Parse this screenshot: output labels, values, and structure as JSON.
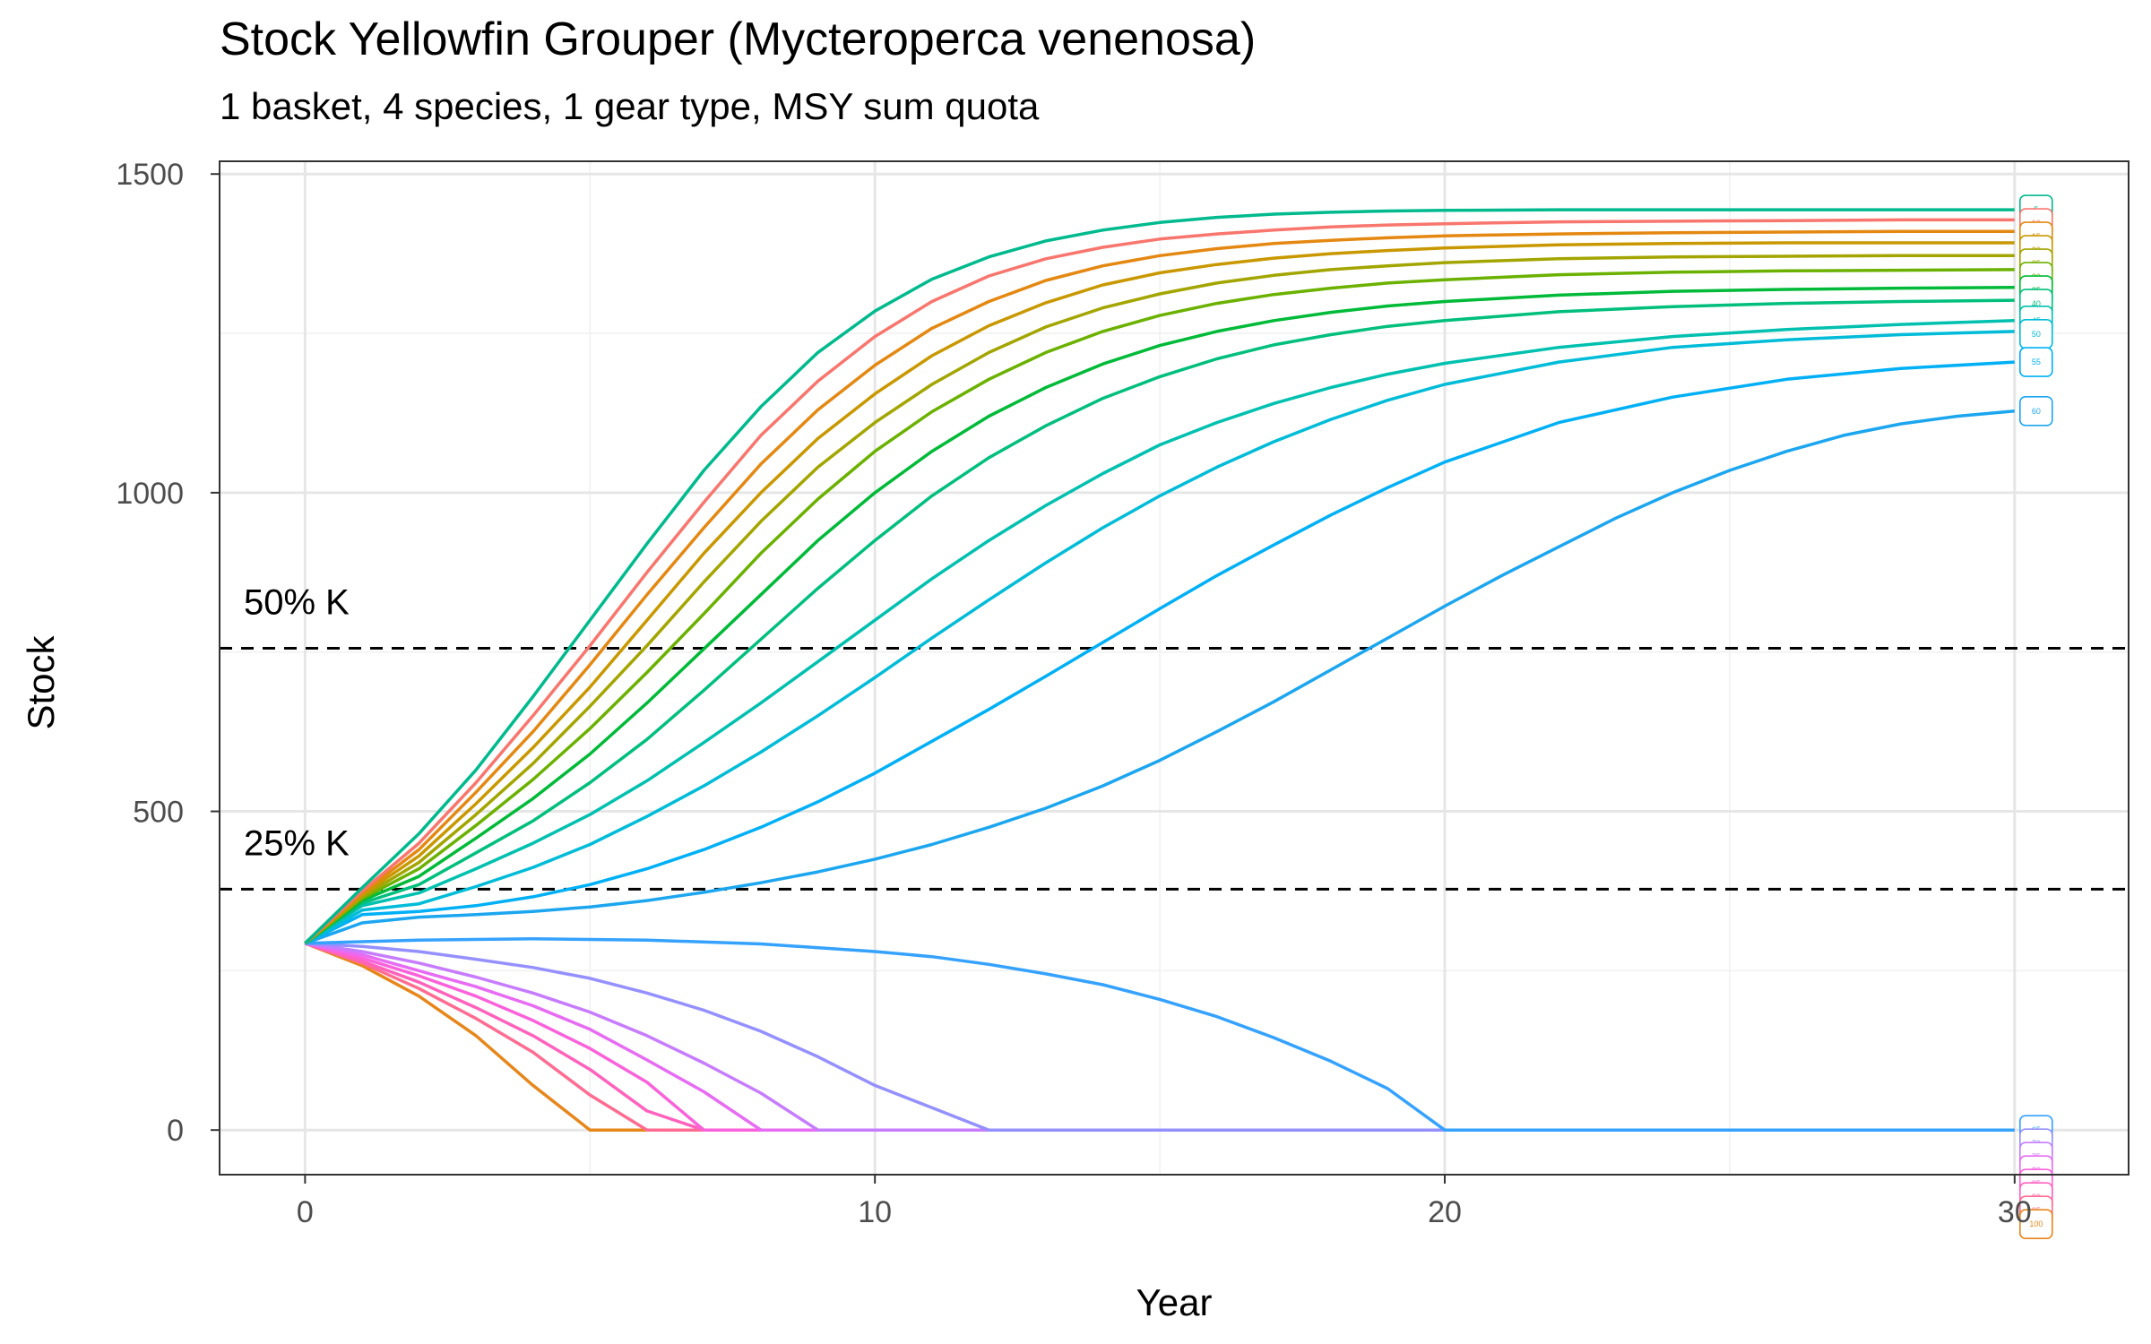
{
  "chart_data": {
    "type": "line",
    "title": "Stock Yellowfin Grouper (Mycteroperca venenosa)",
    "subtitle": "1 basket, 4 species, 1 gear type, MSY sum quota",
    "xlabel": "Year",
    "ylabel": "Stock",
    "xlim": [
      -1.5,
      32
    ],
    "ylim": [
      -70,
      1520
    ],
    "x_ticks": [
      0,
      10,
      20,
      30
    ],
    "y_ticks": [
      0,
      500,
      1000,
      1500
    ],
    "grid": true,
    "legend": "none",
    "reference_lines": [
      {
        "label": "50% K",
        "y": 756
      },
      {
        "label": "25% K",
        "y": 378
      }
    ],
    "series": [
      {
        "label": "5",
        "color": "#00BA8E",
        "x": [
          0,
          1,
          2,
          3,
          4,
          5,
          6,
          7,
          8,
          9,
          10,
          11,
          12,
          13,
          14,
          15,
          16,
          17,
          18,
          19,
          20,
          22,
          24,
          26,
          28,
          30
        ],
        "y": [
          293,
          380,
          465,
          565,
          680,
          800,
          920,
          1035,
          1135,
          1220,
          1285,
          1335,
          1370,
          1395,
          1412,
          1424,
          1432,
          1437,
          1440,
          1442,
          1443,
          1444,
          1444,
          1444,
          1444,
          1444
        ]
      },
      {
        "label": "10",
        "color": "#F8766D",
        "x": [
          0,
          1,
          2,
          3,
          4,
          5,
          6,
          7,
          8,
          9,
          10,
          11,
          12,
          13,
          14,
          15,
          16,
          17,
          18,
          19,
          20,
          22,
          24,
          26,
          28,
          30
        ],
        "y": [
          293,
          375,
          450,
          545,
          650,
          760,
          875,
          985,
          1090,
          1175,
          1245,
          1300,
          1340,
          1367,
          1385,
          1398,
          1406,
          1412,
          1417,
          1420,
          1422,
          1425,
          1426,
          1427,
          1428,
          1428
        ]
      },
      {
        "label": "15",
        "color": "#E48812",
        "x": [
          0,
          1,
          2,
          3,
          4,
          5,
          6,
          7,
          8,
          9,
          10,
          11,
          12,
          13,
          14,
          15,
          16,
          17,
          18,
          19,
          20,
          22,
          24,
          26,
          28,
          30
        ],
        "y": [
          293,
          372,
          440,
          530,
          625,
          730,
          840,
          945,
          1045,
          1130,
          1200,
          1258,
          1300,
          1333,
          1356,
          1372,
          1383,
          1391,
          1396,
          1400,
          1403,
          1406,
          1408,
          1409,
          1410,
          1410
        ]
      },
      {
        "label": "20",
        "color": "#C99800",
        "x": [
          0,
          1,
          2,
          3,
          4,
          5,
          6,
          7,
          8,
          9,
          10,
          11,
          12,
          13,
          14,
          15,
          16,
          17,
          18,
          19,
          20,
          22,
          24,
          26,
          28,
          30
        ],
        "y": [
          293,
          369,
          430,
          512,
          600,
          695,
          800,
          905,
          1000,
          1085,
          1155,
          1215,
          1262,
          1298,
          1326,
          1345,
          1358,
          1368,
          1375,
          1380,
          1384,
          1389,
          1391,
          1392,
          1392,
          1392
        ]
      },
      {
        "label": "25",
        "color": "#A3A500",
        "x": [
          0,
          1,
          2,
          3,
          4,
          5,
          6,
          7,
          8,
          9,
          10,
          11,
          12,
          13,
          14,
          15,
          16,
          17,
          18,
          19,
          20,
          22,
          24,
          26,
          28,
          30
        ],
        "y": [
          293,
          366,
          420,
          495,
          575,
          665,
          760,
          860,
          955,
          1040,
          1110,
          1170,
          1220,
          1260,
          1290,
          1312,
          1329,
          1341,
          1350,
          1356,
          1361,
          1367,
          1370,
          1371,
          1372,
          1372
        ]
      },
      {
        "label": "30",
        "color": "#6BB100",
        "x": [
          0,
          1,
          2,
          3,
          4,
          5,
          6,
          7,
          8,
          9,
          10,
          11,
          12,
          13,
          14,
          15,
          16,
          17,
          18,
          19,
          20,
          22,
          24,
          26,
          28,
          30
        ],
        "y": [
          293,
          363,
          410,
          478,
          550,
          630,
          718,
          810,
          905,
          990,
          1065,
          1127,
          1178,
          1220,
          1253,
          1278,
          1297,
          1311,
          1321,
          1329,
          1334,
          1342,
          1346,
          1348,
          1349,
          1350
        ]
      },
      {
        "label": "35",
        "color": "#00BA38",
        "x": [
          0,
          1,
          2,
          3,
          4,
          5,
          6,
          7,
          8,
          9,
          10,
          11,
          12,
          13,
          14,
          15,
          16,
          17,
          18,
          19,
          20,
          22,
          24,
          26,
          28,
          30
        ],
        "y": [
          293,
          360,
          398,
          458,
          520,
          590,
          670,
          755,
          840,
          925,
          1000,
          1065,
          1120,
          1165,
          1202,
          1231,
          1253,
          1270,
          1283,
          1293,
          1300,
          1310,
          1316,
          1319,
          1321,
          1322
        ]
      },
      {
        "label": "40",
        "color": "#00BF7D",
        "x": [
          0,
          1,
          2,
          3,
          4,
          5,
          6,
          7,
          8,
          9,
          10,
          11,
          12,
          13,
          14,
          15,
          16,
          17,
          18,
          19,
          20,
          22,
          24,
          26,
          28,
          30
        ],
        "y": [
          293,
          356,
          385,
          435,
          485,
          545,
          613,
          690,
          770,
          850,
          925,
          995,
          1055,
          1105,
          1148,
          1182,
          1210,
          1232,
          1248,
          1261,
          1270,
          1284,
          1292,
          1297,
          1300,
          1302
        ]
      },
      {
        "label": "45",
        "color": "#00C0AF",
        "x": [
          0,
          1,
          2,
          3,
          4,
          5,
          6,
          7,
          8,
          9,
          10,
          11,
          12,
          13,
          14,
          15,
          16,
          17,
          18,
          19,
          20,
          22,
          24,
          26,
          28,
          30
        ],
        "y": [
          293,
          352,
          372,
          410,
          450,
          495,
          548,
          608,
          670,
          735,
          800,
          865,
          925,
          980,
          1030,
          1075,
          1110,
          1140,
          1165,
          1186,
          1203,
          1228,
          1245,
          1256,
          1264,
          1270
        ]
      },
      {
        "label": "50",
        "color": "#00BCD8",
        "x": [
          0,
          1,
          2,
          3,
          4,
          5,
          6,
          7,
          8,
          9,
          10,
          11,
          12,
          13,
          14,
          15,
          16,
          17,
          18,
          19,
          20,
          22,
          24,
          26,
          28,
          30
        ],
        "y": [
          293,
          345,
          355,
          382,
          412,
          448,
          492,
          540,
          593,
          650,
          710,
          772,
          832,
          890,
          945,
          995,
          1040,
          1080,
          1115,
          1145,
          1170,
          1205,
          1228,
          1240,
          1248,
          1253
        ]
      },
      {
        "label": "55",
        "color": "#00B0F6",
        "x": [
          0,
          1,
          2,
          3,
          4,
          5,
          6,
          7,
          8,
          9,
          10,
          11,
          12,
          13,
          14,
          15,
          16,
          17,
          18,
          19,
          20,
          22,
          24,
          26,
          28,
          30
        ],
        "y": [
          293,
          338,
          343,
          352,
          366,
          385,
          410,
          440,
          475,
          515,
          560,
          610,
          660,
          712,
          765,
          818,
          870,
          918,
          965,
          1008,
          1048,
          1110,
          1150,
          1178,
          1195,
          1205
        ]
      },
      {
        "label": "60",
        "color": "#1CA6F0",
        "x": [
          0,
          1,
          2,
          3,
          4,
          5,
          6,
          7,
          8,
          9,
          10,
          11,
          12,
          13,
          14,
          15,
          16,
          17,
          18,
          19,
          20,
          21,
          22,
          23,
          24,
          25,
          26,
          27,
          28,
          29,
          30
        ],
        "y": [
          293,
          325,
          334,
          338,
          343,
          350,
          360,
          373,
          388,
          405,
          425,
          448,
          475,
          505,
          540,
          580,
          625,
          672,
          722,
          772,
          822,
          870,
          915,
          960,
          1000,
          1035,
          1065,
          1090,
          1108,
          1120,
          1128
        ]
      },
      {
        "label": "65",
        "color": "#35A2FF",
        "x": [
          0,
          2,
          4,
          6,
          8,
          10,
          11,
          12,
          13,
          14,
          15,
          16,
          17,
          18,
          19,
          20,
          22,
          24,
          26,
          28,
          30
        ],
        "y": [
          293,
          298,
          300,
          298,
          292,
          280,
          272,
          260,
          245,
          228,
          205,
          178,
          145,
          108,
          65,
          0,
          0,
          0,
          0,
          0,
          0
        ]
      },
      {
        "label": "70",
        "color": "#9590FF",
        "x": [
          0,
          1,
          2,
          3,
          4,
          5,
          6,
          7,
          8,
          9,
          10,
          11,
          12,
          14,
          16,
          18,
          20,
          22,
          24,
          26,
          28,
          30
        ],
        "y": [
          293,
          288,
          280,
          268,
          255,
          238,
          215,
          188,
          155,
          115,
          70,
          35,
          0,
          0,
          0,
          0,
          0,
          0,
          0,
          0,
          0,
          0
        ]
      },
      {
        "label": "75",
        "color": "#C77CFF",
        "x": [
          0,
          1,
          2,
          3,
          4,
          5,
          6,
          7,
          8,
          9,
          10,
          12,
          14,
          16,
          18,
          20,
          22,
          24,
          26,
          28,
          30
        ],
        "y": [
          293,
          280,
          262,
          240,
          215,
          185,
          148,
          105,
          58,
          0,
          0,
          0,
          0,
          0,
          0,
          0,
          0,
          0,
          0,
          0,
          0
        ]
      },
      {
        "label": "80",
        "color": "#E76BF3",
        "x": [
          0,
          1,
          2,
          3,
          4,
          5,
          6,
          7,
          8,
          9,
          10,
          12,
          14,
          16,
          18,
          20,
          22,
          24,
          26,
          28,
          30
        ],
        "y": [
          293,
          275,
          250,
          225,
          195,
          158,
          110,
          60,
          0,
          0,
          0,
          0,
          0,
          0,
          0,
          0,
          0,
          0,
          0,
          0,
          0
        ]
      },
      {
        "label": "85",
        "color": "#FA62DB",
        "x": [
          0,
          1,
          2,
          3,
          4,
          5,
          6,
          7,
          8,
          9,
          10,
          12,
          14,
          16,
          18,
          20,
          22,
          24,
          26,
          28,
          30
        ],
        "y": [
          293,
          270,
          242,
          210,
          172,
          128,
          75,
          0,
          0,
          0,
          0,
          0,
          0,
          0,
          0,
          0,
          0,
          0,
          0,
          0,
          0
        ]
      },
      {
        "label": "90",
        "color": "#FF62BC",
        "x": [
          0,
          1,
          2,
          3,
          4,
          5,
          6,
          7,
          8,
          9,
          10,
          12,
          14,
          16,
          18,
          20,
          22,
          24,
          26,
          28,
          30
        ],
        "y": [
          293,
          265,
          232,
          192,
          148,
          95,
          30,
          0,
          0,
          0,
          0,
          0,
          0,
          0,
          0,
          0,
          0,
          0,
          0,
          0,
          0
        ]
      },
      {
        "label": "95",
        "color": "#FF6C91",
        "x": [
          0,
          1,
          2,
          3,
          4,
          5,
          6,
          7,
          8,
          9,
          10,
          12,
          14,
          16,
          18,
          20,
          22,
          24,
          26,
          28,
          30
        ],
        "y": [
          293,
          262,
          222,
          175,
          122,
          55,
          0,
          0,
          0,
          0,
          0,
          0,
          0,
          0,
          0,
          0,
          0,
          0,
          0,
          0,
          0
        ]
      },
      {
        "label": "100",
        "color": "#E7861B",
        "x": [
          0,
          1,
          2,
          3,
          4,
          5,
          6,
          7,
          8,
          9,
          10,
          12,
          14,
          16,
          18,
          20,
          22,
          24,
          26,
          28,
          30
        ],
        "y": [
          293,
          258,
          210,
          148,
          70,
          0,
          0,
          0,
          0,
          0,
          0,
          0,
          0,
          0,
          0,
          0,
          0,
          0,
          0,
          0,
          0
        ]
      }
    ]
  }
}
